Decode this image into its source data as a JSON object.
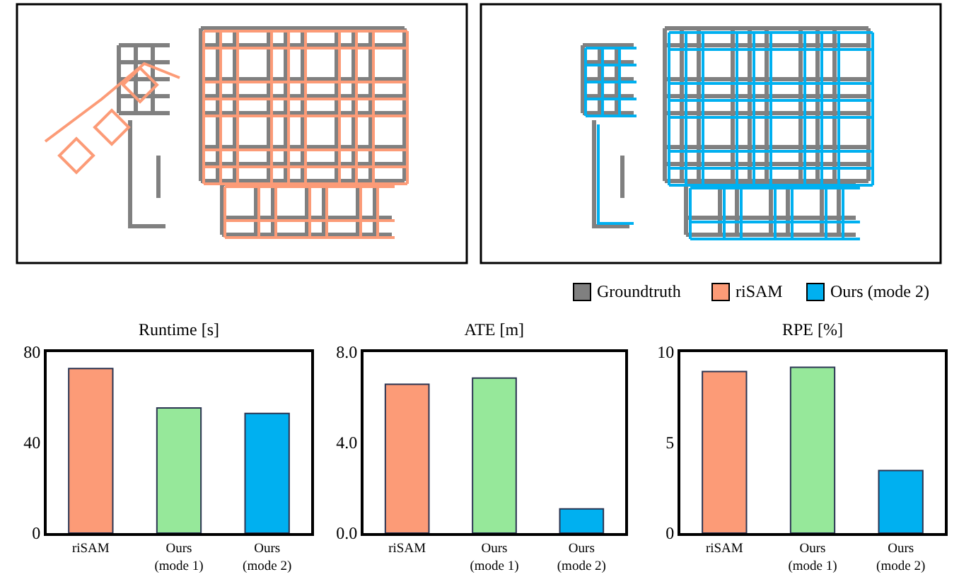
{
  "chart_data": [
    {
      "type": "other",
      "legend": "bottom right",
      "series": [
        {
          "name": "Groundtruth",
          "color": "#808080"
        },
        {
          "name": "riSAM",
          "color": "#fc9b77"
        },
        {
          "name": "Ours (mode 2)",
          "color": "#00b0f0"
        }
      ]
    },
    {
      "type": "bar",
      "title": "Runtime [s]",
      "categories": [
        "riSAM",
        "Ours\n(mode 1)",
        "Ours\n(mode 2)"
      ],
      "values": [
        72.7,
        55.3,
        52.9
      ],
      "colors": [
        "#fc9b77",
        "#96e89a",
        "#00b0f0"
      ],
      "ylim": [
        0,
        80
      ],
      "yticks": [
        0,
        40,
        80
      ]
    },
    {
      "type": "bar",
      "title": "ATE [m]",
      "categories": [
        "riSAM",
        "Ours\n(mode 1)",
        "Ours\n(mode 2)"
      ],
      "values": [
        6.58,
        6.85,
        1.07
      ],
      "colors": [
        "#fc9b77",
        "#96e89a",
        "#00b0f0"
      ],
      "ylim": [
        0,
        8
      ],
      "yticks": [
        {
          "value": 0,
          "label": "0.0"
        },
        {
          "value": 4,
          "label": "4.0"
        },
        {
          "value": 8,
          "label": "8.0"
        }
      ]
    },
    {
      "type": "bar",
      "title": "RPE [%]",
      "categories": [
        "riSAM",
        "Ours\n(mode 1)",
        "Ours\n(mode 2)"
      ],
      "values": [
        8.93,
        9.16,
        3.46
      ],
      "colors": [
        "#fc9b77",
        "#96e89a",
        "#00b0f0"
      ],
      "ylim": [
        0,
        10
      ],
      "yticks": [
        0,
        5,
        10
      ]
    }
  ]
}
